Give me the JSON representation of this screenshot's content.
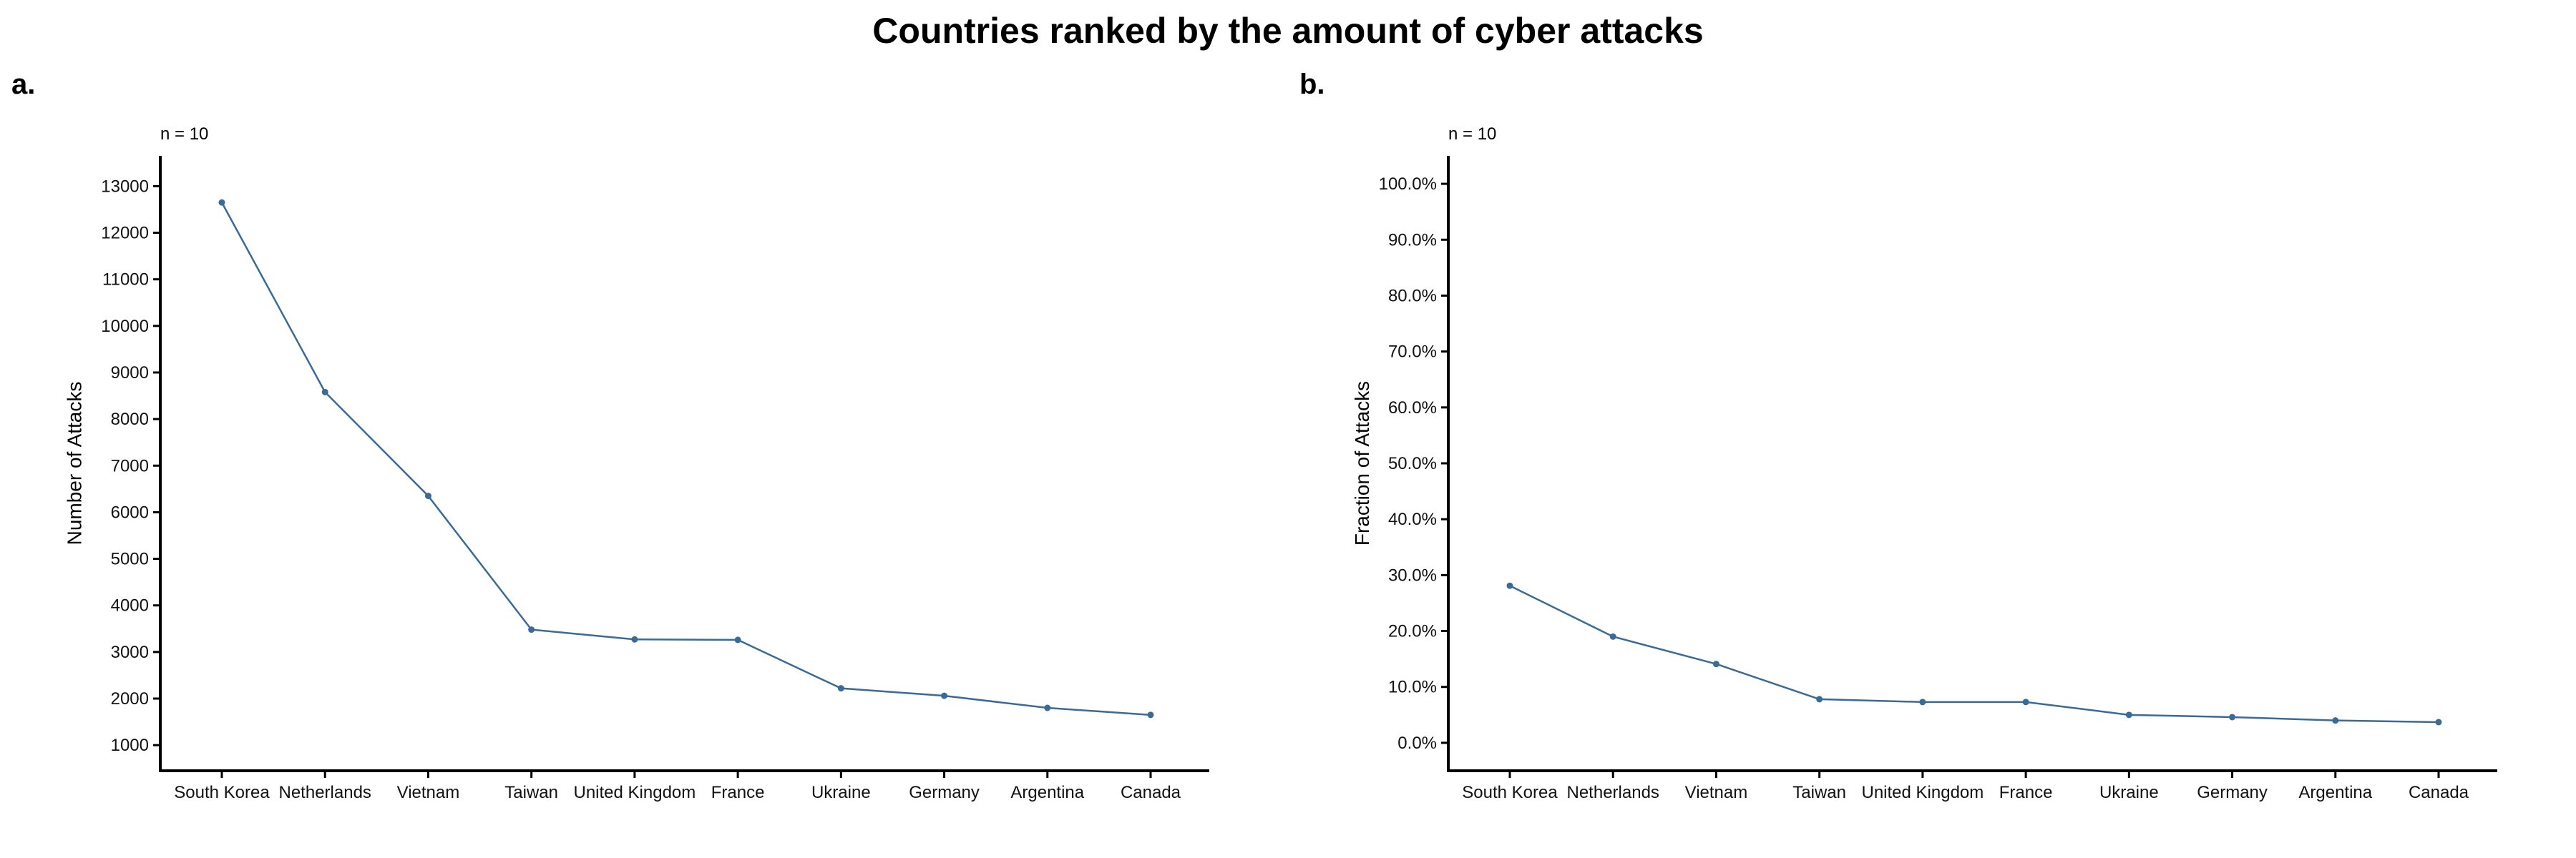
{
  "title": "Countries ranked by the amount of cyber attacks",
  "colors": {
    "line": "#3a6a96",
    "axis": "#000000"
  },
  "chart_data": [
    {
      "type": "line",
      "panel_label": "a.",
      "annotation": "n = 10",
      "title": "",
      "xlabel": "",
      "ylabel": "Number of Attacks",
      "categories": [
        "South Korea",
        "Netherlands",
        "Vietnam",
        "Taiwan",
        "United Kingdom",
        "France",
        "Ukraine",
        "Germany",
        "Argentina",
        "Canada"
      ],
      "series": [
        {
          "values": [
            12650,
            8580,
            6350,
            3480,
            3270,
            3260,
            2220,
            2060,
            1800,
            1650
          ]
        }
      ],
      "yticks": [
        1000,
        2000,
        3000,
        4000,
        5000,
        6000,
        7000,
        8000,
        9000,
        10000,
        11000,
        12000,
        13000
      ],
      "ytick_labels": [
        "1000",
        "2000",
        "3000",
        "4000",
        "5000",
        "6000",
        "7000",
        "8000",
        "9000",
        "10000",
        "11000",
        "12000",
        "13000"
      ],
      "ylim": [
        450,
        13650
      ],
      "grid": false,
      "legend": "none"
    },
    {
      "type": "line",
      "panel_label": "b.",
      "annotation": "n = 10",
      "title": "",
      "xlabel": "",
      "ylabel": "Fraction of Attacks",
      "categories": [
        "South Korea",
        "Netherlands",
        "Vietnam",
        "Taiwan",
        "United Kingdom",
        "France",
        "Ukraine",
        "Germany",
        "Argentina",
        "Canada"
      ],
      "series": [
        {
          "values": [
            0.281,
            0.19,
            0.141,
            0.078,
            0.073,
            0.073,
            0.05,
            0.046,
            0.04,
            0.037
          ]
        }
      ],
      "yticks": [
        0,
        0.1,
        0.2,
        0.3,
        0.4,
        0.5,
        0.6,
        0.7,
        0.8,
        0.9,
        1.0
      ],
      "ytick_labels": [
        "0.0%",
        "10.0%",
        "20.0%",
        "30.0%",
        "40.0%",
        "50.0%",
        "60.0%",
        "70.0%",
        "80.0%",
        "90.0%",
        "100.0%"
      ],
      "ylim": [
        -0.05,
        1.05
      ],
      "grid": false,
      "legend": "none"
    }
  ]
}
